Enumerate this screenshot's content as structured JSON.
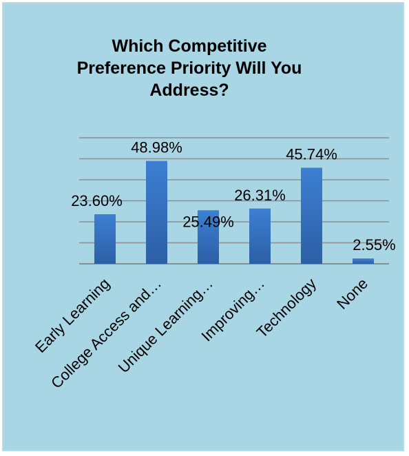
{
  "chart_data": {
    "type": "bar",
    "title_lines": [
      "Which Competitive",
      "Preference Priority Will You",
      "Address?"
    ],
    "categories": [
      "Early Learning",
      "College Access and…",
      "Unique Learning…",
      "Improving…",
      "Technology",
      "None"
    ],
    "values": [
      23.6,
      48.98,
      25.49,
      26.31,
      45.74,
      2.55
    ],
    "value_labels": [
      "23.60%",
      "48.98%",
      "25.49%",
      "26.31%",
      "45.74%",
      "2.55%"
    ],
    "xlabel": "",
    "ylabel": "",
    "ylim": [
      0,
      60
    ],
    "grid": true,
    "legend": "none",
    "colors": {
      "background": "#a9d6e5",
      "bar": "#3a78c9",
      "bar_dark": "#2a5a9c",
      "gridline": "#8a8f93"
    }
  }
}
